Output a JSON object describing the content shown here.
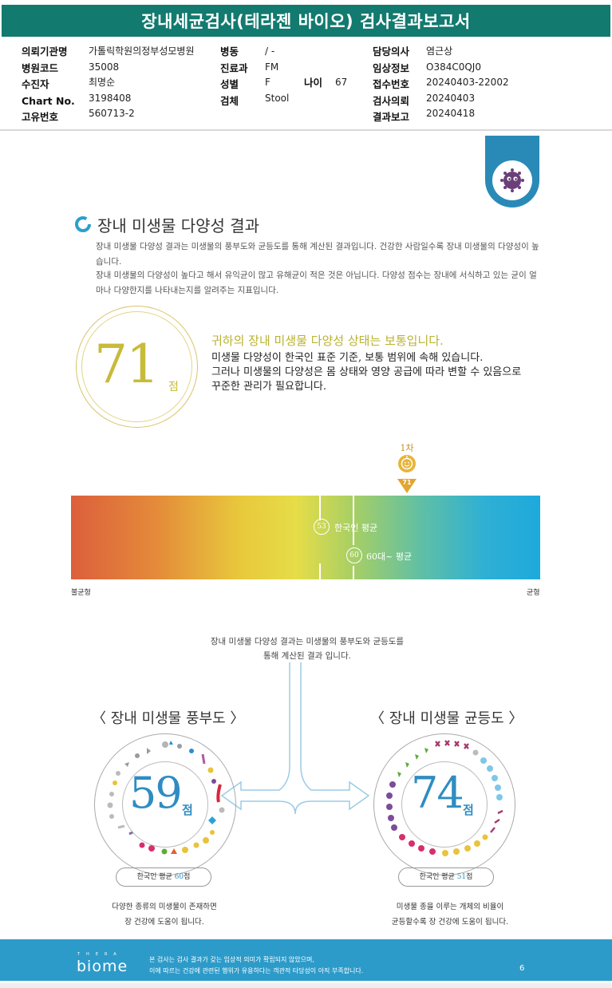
{
  "header": {
    "title": "장내세균검사(테라젠 바이오) 검사결과보고서",
    "col1": [
      {
        "label": "의뢰기관명",
        "value": "가톨릭학원의정부성모병원"
      },
      {
        "label": "병원코드",
        "value": "35008"
      },
      {
        "label": "수진자",
        "value": "최명순"
      },
      {
        "label": "Chart No.",
        "value": "3198408"
      },
      {
        "label": "고유번호",
        "value": "560713-2"
      }
    ],
    "col2": [
      {
        "label": "병동",
        "value": "/ -"
      },
      {
        "label": "진료과",
        "value": "FM"
      },
      {
        "label": "성별",
        "value": "F"
      },
      {
        "label": "검체",
        "value": "Stool"
      }
    ],
    "age": {
      "label": "나이",
      "value": "67"
    },
    "col3": [
      {
        "label": "담당의사",
        "value": "염근상"
      },
      {
        "label": "임상정보",
        "value": "O384C0QJ0"
      },
      {
        "label": "접수번호",
        "value": "20240403-22002"
      },
      {
        "label": "검사의뢰",
        "value": "20240403"
      },
      {
        "label": "결과보고",
        "value": "20240418"
      }
    ]
  },
  "section": {
    "title": "장내 미생물 다양성 결과",
    "desc1": "장내 미생물 다양성 결과는 미생물의 풍부도와 균등도를 통해 계산된 결과입니다. 건강한 사람일수록 장내 미생물의 다양성이 높습니다.",
    "desc2": "장내 미생물의 다양성이 높다고 해서 유익균이 많고 유해균이 적은 것은 아닙니다. 다양성 점수는 장내에 서식하고 있는 균이 얼마나 다양한지를 나타내는지를 알려주는 지표입니다."
  },
  "score": {
    "value": "71",
    "unit": "점",
    "status_title": "귀하의 장내 미생물 다양성 상태는 보통입니다.",
    "status_lines": [
      "미생물 다양성이 한국인 표준 기준, 보통 범위에 속해 있습니다.",
      "그러나 미생물의 다양성은 몸 상태와 영양 공급에 따라 변할 수 있음으로",
      "꾸준한 관리가 필요합니다."
    ]
  },
  "scale": {
    "pin_label": "1차",
    "pin_value": "71",
    "marker_korean": {
      "value": "53",
      "label": "한국인 평균"
    },
    "marker_60s": {
      "value": "60",
      "label": "60대~ 평균"
    },
    "left_label": "불균형",
    "right_label": "균형"
  },
  "explain": {
    "line1": "장내 미생물 다양성 결과는 미생물의 풍부도와 균등도를",
    "line2": "통해 계산된 결과 입니다."
  },
  "richness": {
    "title": "〈 장내 미생물 풍부도 〉",
    "value": "59",
    "unit": "점",
    "avg_prefix": "한국인 평균 ",
    "avg_value": "60",
    "avg_suffix": "점",
    "desc1": "다양한 종류의 미생물이 존재하면",
    "desc2": "장 건강에 도움이 됩니다."
  },
  "evenness": {
    "title": "〈 장내 미생물 균등도 〉",
    "value": "74",
    "unit": "점",
    "avg_prefix": "한국인 평균 ",
    "avg_value": "51",
    "avg_suffix": "점",
    "desc1": "미생물 종을 이루는 개체의 비율이",
    "desc2": "균등할수록 장 건강에 도움이 됩니다."
  },
  "footer": {
    "logo_small": "THERA",
    "logo": "biome",
    "line1": "본 검사는 검사 결과가 갖는 임상적 의미가 확립되지 않았으며,",
    "line2": "이에 따르는 건강에 관련된 행위가 유용하다는 객관적 타당성이 아직 부족합니다.",
    "page": "6"
  },
  "colors": {
    "header_bg": "#127a6f",
    "accent_blue": "#2f8cc1",
    "score_gold": "#c8bb3a",
    "footer_bg": "#2d9bc9"
  }
}
